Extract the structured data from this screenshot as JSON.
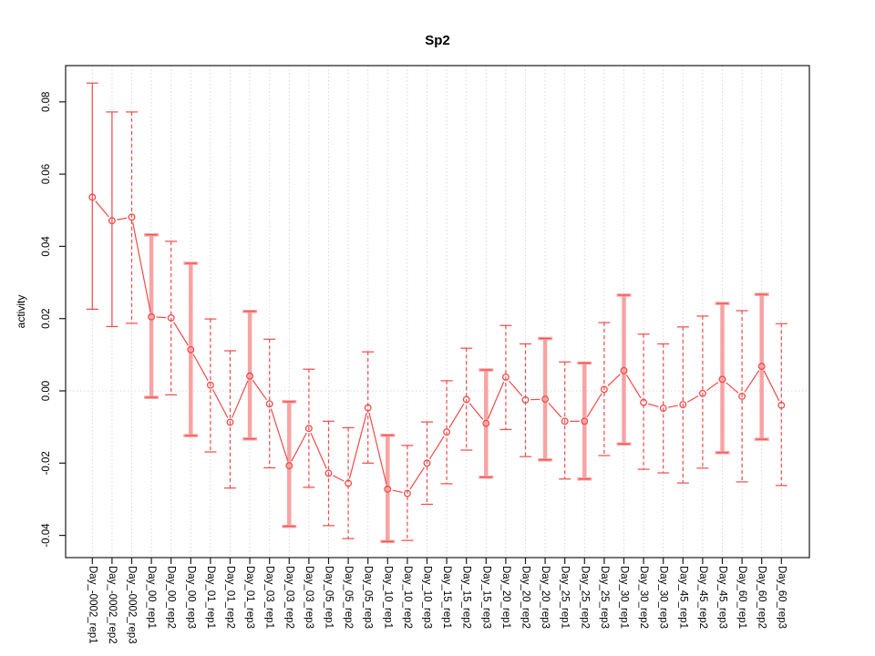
{
  "title": "Sp2",
  "ylabel": "activity",
  "chart_data": {
    "type": "line",
    "title": "Sp2",
    "xlabel": "",
    "ylabel": "activity",
    "legend": "none",
    "grid": "vertical-dotted-per-category-plus-zero-line",
    "ylim": [
      -0.045,
      0.09
    ],
    "ytick_labels": [
      "0.08",
      "0.06",
      "0.04",
      "0.02",
      "0.00",
      "-0.02",
      "-0.04"
    ],
    "ytick_values": [
      0.08,
      0.06,
      0.04,
      0.02,
      0.0,
      -0.02,
      -0.04
    ],
    "categories": [
      "Day_-0002_rep1",
      "Day_-0002_rep2",
      "Day_-0002_rep3",
      "Day_00_rep1",
      "Day_00_rep2",
      "Day_00_rep3",
      "Day_01_rep1",
      "Day_01_rep2",
      "Day_01_rep3",
      "Day_03_rep1",
      "Day_03_rep2",
      "Day_03_rep3",
      "Day_05_rep1",
      "Day_05_rep2",
      "Day_05_rep3",
      "Day_10_rep1",
      "Day_10_rep2",
      "Day_10_rep3",
      "Day_15_rep1",
      "Day_15_rep2",
      "Day_15_rep3",
      "Day_20_rep1",
      "Day_20_rep2",
      "Day_20_rep3",
      "Day_25_rep1",
      "Day_25_rep2",
      "Day_25_rep3",
      "Day_30_rep1",
      "Day_30_rep2",
      "Day_30_rep3",
      "Day_45_rep1",
      "Day_45_rep2",
      "Day_45_rep3",
      "Day_60_rep1",
      "Day_60_rep2",
      "Day_60_rep3"
    ],
    "values": [
      0.0536,
      0.0471,
      0.0481,
      0.0205,
      0.0202,
      0.0114,
      0.0016,
      -0.0087,
      0.0041,
      -0.0036,
      -0.0207,
      -0.0104,
      -0.0228,
      -0.0256,
      -0.0047,
      -0.0272,
      -0.0284,
      -0.02,
      -0.0114,
      -0.0024,
      -0.009,
      0.0038,
      -0.0025,
      -0.0023,
      -0.0084,
      -0.0084,
      0.0004,
      0.0056,
      -0.0032,
      -0.0048,
      -0.0038,
      -0.0007,
      0.0032,
      -0.0015,
      0.0068,
      -0.004
    ],
    "error_low": [
      0.0226,
      0.0178,
      0.0187,
      -0.0018,
      -0.0011,
      -0.0124,
      -0.0169,
      -0.0269,
      -0.0133,
      -0.0213,
      -0.0375,
      -0.0267,
      -0.0373,
      -0.0409,
      -0.02,
      -0.0417,
      -0.0414,
      -0.0314,
      -0.0257,
      -0.0164,
      -0.0239,
      -0.0107,
      -0.0182,
      -0.0191,
      -0.0244,
      -0.0244,
      -0.0179,
      -0.0147,
      -0.0217,
      -0.0227,
      -0.0255,
      -0.0214,
      -0.0171,
      -0.0252,
      -0.0134,
      -0.0262
    ],
    "error_high": [
      0.0852,
      0.0772,
      0.0772,
      0.0432,
      0.0414,
      0.0353,
      0.0199,
      0.0111,
      0.022,
      0.0143,
      -0.003,
      0.006,
      -0.0084,
      -0.0102,
      0.0108,
      -0.0123,
      -0.0151,
      -0.0086,
      0.0028,
      0.0118,
      0.0058,
      0.0181,
      0.013,
      0.0145,
      0.008,
      0.0077,
      0.0189,
      0.0265,
      0.0157,
      0.013,
      0.0177,
      0.0207,
      0.0242,
      0.0222,
      0.0267,
      0.0186
    ],
    "bar_style": [
      "solid",
      "solid",
      "dashed",
      "thick",
      "dashed",
      "thick",
      "dashed",
      "dashed",
      "thick",
      "dashed",
      "thick",
      "dashed",
      "dashed",
      "dashed",
      "dashed",
      "thick",
      "dashed",
      "dashed",
      "dashed",
      "dashed",
      "thick",
      "dashed",
      "dashed",
      "thick",
      "dashed",
      "thick",
      "dashed",
      "thick",
      "dashed",
      "dashed",
      "dashed",
      "dashed",
      "thick",
      "dashed",
      "thick",
      "dashed"
    ],
    "colors": {
      "series": "#f04a4a",
      "thick_bar": "#f89b9b",
      "grid": "#d9d9d9",
      "axis": "#1a1a1a",
      "text": "#000000"
    }
  }
}
